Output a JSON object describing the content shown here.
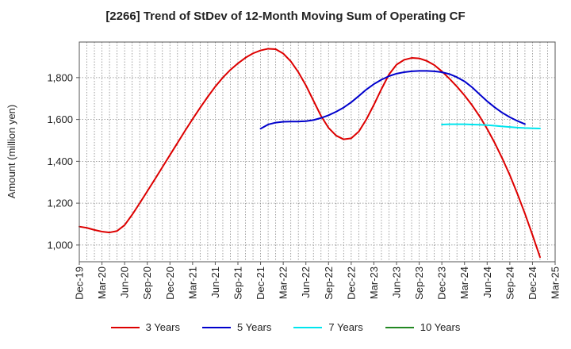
{
  "chart_data": {
    "type": "line",
    "title": "[2266]  Trend of StDev of 12-Month Moving Sum of Operating CF",
    "xlabel": "",
    "ylabel": "Amount (million yen)",
    "x_ticks": [
      "Dec-19",
      "Mar-20",
      "Jun-20",
      "Sep-20",
      "Dec-20",
      "Mar-21",
      "Jun-21",
      "Sep-21",
      "Dec-21",
      "Mar-22",
      "Jun-22",
      "Sep-22",
      "Dec-22",
      "Mar-23",
      "Jun-23",
      "Sep-23",
      "Dec-23",
      "Mar-24",
      "Jun-24",
      "Sep-24",
      "Dec-24",
      "Mar-25"
    ],
    "y_ticks": [
      1000,
      1200,
      1400,
      1600,
      1800
    ],
    "y_tick_labels": [
      "1,000",
      "1,200",
      "1,400",
      "1,600",
      "1,800"
    ],
    "ylim": [
      920,
      1970
    ],
    "grid": true,
    "legend_position": "bottom",
    "series": [
      {
        "name": "3 Years",
        "color": "#dd0000",
        "start_index": 0,
        "values": [
          1088,
          1082,
          1072,
          1064,
          1060,
          1067,
          1095,
          1145,
          1200,
          1257,
          1314,
          1372,
          1430,
          1488,
          1546,
          1602,
          1656,
          1708,
          1757,
          1800,
          1837,
          1868,
          1895,
          1916,
          1930,
          1938,
          1936,
          1915,
          1878,
          1826,
          1763,
          1690,
          1617,
          1560,
          1523,
          1505,
          1510,
          1542,
          1600,
          1670,
          1745,
          1815,
          1862,
          1885,
          1894,
          1892,
          1880,
          1860,
          1830,
          1795,
          1757,
          1715,
          1668,
          1615,
          1555,
          1488,
          1414,
          1334,
          1245,
          1150,
          1048,
          942
        ]
      },
      {
        "name": "5 Years",
        "color": "#0000cc",
        "start_index": 24,
        "values": [
          1556,
          1576,
          1585,
          1589,
          1590,
          1590,
          1592,
          1597,
          1607,
          1620,
          1637,
          1657,
          1682,
          1712,
          1743,
          1769,
          1790,
          1807,
          1819,
          1826,
          1830,
          1832,
          1832,
          1830,
          1826,
          1817,
          1802,
          1782,
          1754,
          1720,
          1687,
          1658,
          1632,
          1611,
          1593,
          1578
        ]
      },
      {
        "name": "7 Years",
        "color": "#00e5ee",
        "start_index": 48,
        "values": [
          1576,
          1577,
          1577,
          1577,
          1576,
          1575,
          1573,
          1570,
          1567,
          1564,
          1561,
          1559,
          1558,
          1557
        ]
      },
      {
        "name": "10 Years",
        "color": "#228822",
        "start_index": 0,
        "values": []
      }
    ]
  }
}
